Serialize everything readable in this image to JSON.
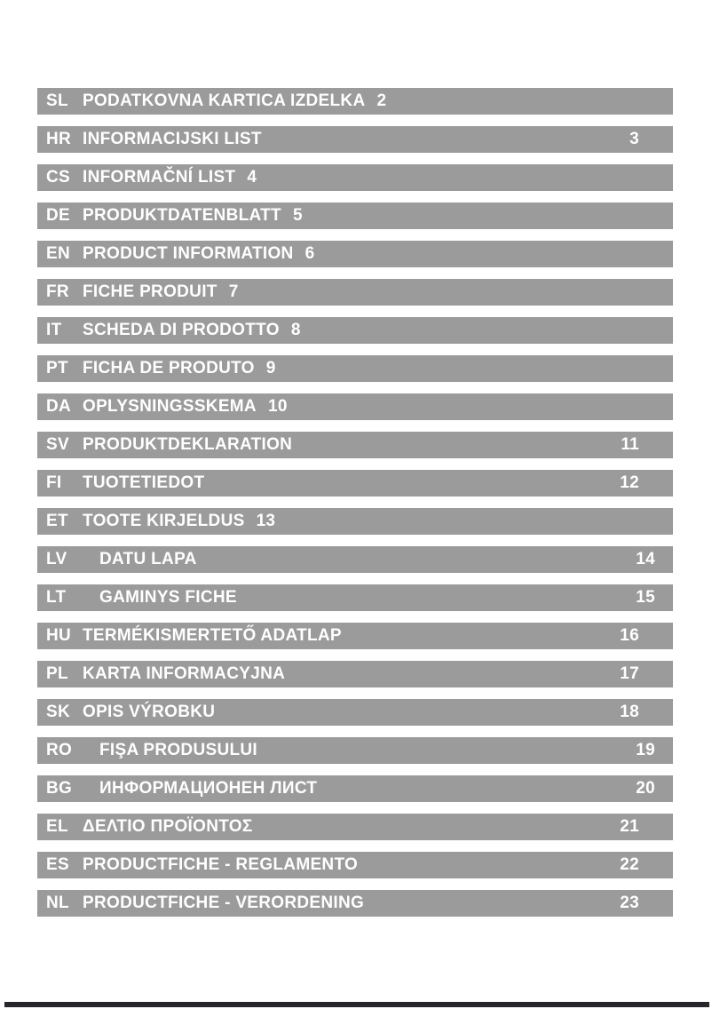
{
  "theme": {
    "page_background": "#ffffff",
    "bar_color": "#9b9b9b",
    "bar_text_color": "#ffffff",
    "footer_rule_color": "#26262c"
  },
  "toc": {
    "entries": [
      {
        "code": "SL",
        "title": "PODATKOVNA KARTICA IZDELKA",
        "page": "2",
        "page_align": "inline",
        "gap": "normal"
      },
      {
        "code": "HR",
        "title": "INFORMACIJSKI LIST",
        "page": "3",
        "page_align": "right",
        "gap": "normal"
      },
      {
        "code": "CS",
        "title": "INFORMAČNÍ LIST",
        "page": "4",
        "page_align": "inline",
        "gap": "normal"
      },
      {
        "code": "DE",
        "title": "PRODUKTDATENBLATT",
        "page": "5",
        "page_align": "inline",
        "gap": "normal"
      },
      {
        "code": "EN",
        "title": "PRODUCT INFORMATION",
        "page": "6",
        "page_align": "inline",
        "gap": "normal"
      },
      {
        "code": "FR",
        "title": "FICHE PRODUIT",
        "page": "7",
        "page_align": "inline",
        "gap": "normal"
      },
      {
        "code": "IT",
        "title": "SCHEDA DI PRODOTTO",
        "page": "8",
        "page_align": "inline",
        "gap": "normal"
      },
      {
        "code": "PT",
        "title": "FICHA DE PRODUTO",
        "page": "9",
        "page_align": "inline",
        "gap": "normal"
      },
      {
        "code": "DA",
        "title": "OPLYSNINGSSKEMA",
        "page": "10",
        "page_align": "inline",
        "gap": "normal"
      },
      {
        "code": "SV",
        "title": "PRODUKTDEKLARATION",
        "page": "11",
        "page_align": "right",
        "gap": "normal"
      },
      {
        "code": "FI",
        "title": "TUOTETIEDOT",
        "page": "12",
        "page_align": "right",
        "gap": "normal"
      },
      {
        "code": "ET",
        "title": "TOOTE KIRJELDUS",
        "page": "13",
        "page_align": "inline",
        "gap": "normal"
      },
      {
        "code": "LV",
        "title": "DATU LAPA",
        "page": "14",
        "page_align": "right",
        "gap": "wide"
      },
      {
        "code": "LT",
        "title": "GAMINYS FICHE",
        "page": "15",
        "page_align": "right",
        "gap": "wide"
      },
      {
        "code": "HU",
        "title": "TERMÉKISMERTETŐ ADATLAP",
        "page": "16",
        "page_align": "right",
        "gap": "normal"
      },
      {
        "code": "PL",
        "title": "KARTA INFORMACYJNA",
        "page": "17",
        "page_align": "right",
        "gap": "normal"
      },
      {
        "code": "SK",
        "title": "OPIS VÝROBKU",
        "page": "18",
        "page_align": "right",
        "gap": "normal"
      },
      {
        "code": "RO",
        "title": "FIŞA PRODUSULUI",
        "page": "19",
        "page_align": "right",
        "gap": "wide"
      },
      {
        "code": "BG",
        "title": "ИНФОРМАЦИОНЕН ЛИСТ",
        "page": "20",
        "page_align": "right",
        "gap": "wide"
      },
      {
        "code": "EL",
        "title": "ΔΕΛΤΙΟ ΠΡΟΪΟΝΤΟΣ",
        "page": "21",
        "page_align": "right",
        "gap": "normal"
      },
      {
        "code": "ES",
        "title": "PRODUCTFICHE - REGLAMENTO",
        "page": "22",
        "page_align": "right",
        "gap": "normal"
      },
      {
        "code": "NL",
        "title": "PRODUCTFICHE - VERORDENING",
        "page": "23",
        "page_align": "right",
        "gap": "normal"
      }
    ]
  }
}
